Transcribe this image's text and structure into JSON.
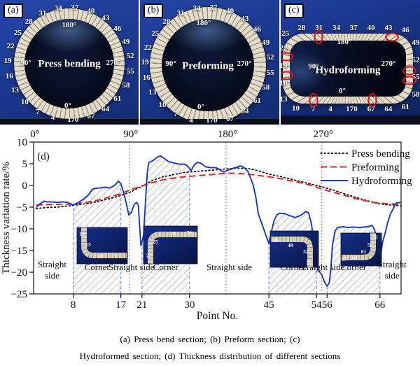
{
  "figure": {
    "panels": [
      {
        "tag": "(a)",
        "name": "Press bending",
        "shape": "circle",
        "numbers": [
          1,
          4,
          7,
          10,
          13,
          16,
          19,
          22,
          25,
          28,
          31,
          34,
          37,
          40,
          43,
          46,
          49,
          52,
          55,
          58,
          61,
          64,
          67,
          70
        ],
        "angle_labels": [
          {
            "text": "180°",
            "pos": "top"
          },
          {
            "text": "90°",
            "pos": "left"
          },
          {
            "text": "270°",
            "pos": "right"
          },
          {
            "text": "0°",
            "pos": "bottom"
          }
        ]
      },
      {
        "tag": "(b)",
        "name": "Preforming",
        "shape": "circle",
        "numbers": [
          1,
          4,
          7,
          10,
          13,
          16,
          19,
          22,
          25,
          28,
          31,
          34,
          37,
          40,
          43,
          46,
          49,
          52,
          55,
          58,
          61,
          64,
          67,
          70
        ],
        "angle_labels": [
          {
            "text": "180°",
            "pos": "top"
          },
          {
            "text": "90°",
            "pos": "left"
          },
          {
            "text": "270°",
            "pos": "right"
          },
          {
            "text": "0°",
            "pos": "bottom"
          }
        ]
      },
      {
        "tag": "(c)",
        "name": "Hydroforming",
        "shape": "rounded-rect",
        "numbers": [
          1,
          4,
          7,
          10,
          13,
          16,
          19,
          22,
          25,
          28,
          31,
          34,
          37,
          40,
          43,
          46,
          49,
          52,
          55,
          58,
          61,
          64,
          67,
          70
        ],
        "angle_labels": [
          {
            "text": "180°",
            "pos": "top"
          },
          {
            "text": "90°",
            "pos": "left"
          },
          {
            "text": "270°",
            "pos": "right"
          },
          {
            "text": "0°",
            "pos": "bottom"
          }
        ],
        "marked_points": [
          8,
          17,
          21,
          30,
          45,
          54,
          56,
          66
        ],
        "mark_color": "#e01212"
      }
    ],
    "captions": [
      "(a) Press bend section; (b) Preform section; (c)",
      "Hydroformed section; (d) Thickness distribution of different sections"
    ]
  },
  "chart_data": {
    "type": "line",
    "panel_tag": "(d)",
    "xlabel": "Point No.",
    "ylabel": "Thickness variation rate/%",
    "ylim": [
      -25,
      10
    ],
    "yticks": [
      10,
      5,
      0,
      -5,
      -10,
      -15,
      -20,
      -25
    ],
    "xlim": [
      0.5,
      70
    ],
    "xticks": [
      8,
      17,
      21,
      30,
      45,
      54,
      56,
      66
    ],
    "top_axis_labels": [
      {
        "label": "0°",
        "point": 0.5,
        "gridline": false
      },
      {
        "label": "90°",
        "point": 18.6,
        "gridline": true
      },
      {
        "label": "180°",
        "point": 36.9,
        "gridline": true
      },
      {
        "label": "270°",
        "point": 55,
        "gridline": true
      }
    ],
    "corner_regions": [
      [
        8,
        17
      ],
      [
        21,
        30
      ],
      [
        45,
        54
      ],
      [
        56,
        66
      ]
    ],
    "region_labels": [
      {
        "text": "Straight side",
        "point": 4,
        "two_line": true
      },
      {
        "text": "Corner",
        "point": 12.5,
        "two_line": false
      },
      {
        "text": "Straight side",
        "point": 19,
        "two_line": false
      },
      {
        "text": "Corner",
        "point": 25.5,
        "two_line": false
      },
      {
        "text": "Straight side",
        "point": 37.5,
        "two_line": false
      },
      {
        "text": "Corner",
        "point": 49.5,
        "two_line": false
      },
      {
        "text": "Straight side",
        "point": 55,
        "two_line": false
      },
      {
        "text": "Corner",
        "point": 61,
        "two_line": false
      },
      {
        "text": "Straight side",
        "point": 68.3,
        "two_line": true
      }
    ],
    "legend": {
      "position": "top-right",
      "entries": [
        "Press bending",
        "Preforming",
        "Hydroforming"
      ]
    },
    "colors": {
      "press_bending": "#000000",
      "preforming": "#e8231f",
      "hydroforming": "#1535d6",
      "hatch": "#999999",
      "boundary_dash": "#8a9af0",
      "gridline": "#888888"
    },
    "series": [
      {
        "name": "Press bending",
        "style": "dotted",
        "color": "#000000",
        "points": [
          [
            1,
            -5.3
          ],
          [
            3,
            -5.1
          ],
          [
            5,
            -5.0
          ],
          [
            8,
            -4.6
          ],
          [
            11,
            -4.1
          ],
          [
            13,
            -3.6
          ],
          [
            15,
            -3.0
          ],
          [
            17,
            -2.3
          ],
          [
            19,
            -1.4
          ],
          [
            21,
            -0.2
          ],
          [
            23,
            1.2
          ],
          [
            25,
            2.0
          ],
          [
            27,
            2.5
          ],
          [
            29,
            3.0
          ],
          [
            31,
            3.2
          ],
          [
            33,
            3.4
          ],
          [
            35,
            3.6
          ],
          [
            37,
            3.8
          ],
          [
            39,
            4.0
          ],
          [
            41,
            3.9
          ],
          [
            43,
            3.4
          ],
          [
            45,
            2.6
          ],
          [
            47,
            2.1
          ],
          [
            49,
            1.5
          ],
          [
            51,
            0.9
          ],
          [
            53,
            0.3
          ],
          [
            55,
            -0.3
          ],
          [
            57,
            -1.0
          ],
          [
            59,
            -1.8
          ],
          [
            61,
            -2.6
          ],
          [
            63,
            -3.3
          ],
          [
            65,
            -4.0
          ],
          [
            67,
            -4.4
          ],
          [
            69,
            -4.6
          ],
          [
            70,
            -4.7
          ]
        ]
      },
      {
        "name": "Preforming",
        "style": "dashed",
        "color": "#e8231f",
        "points": [
          [
            1,
            -4.5
          ],
          [
            4,
            -4.4
          ],
          [
            7,
            -4.3
          ],
          [
            10,
            -4.0
          ],
          [
            13,
            -3.3
          ],
          [
            15,
            -2.6
          ],
          [
            17,
            -1.9
          ],
          [
            19,
            -0.9
          ],
          [
            21,
            -0.1
          ],
          [
            23,
            0.7
          ],
          [
            25,
            1.3
          ],
          [
            27,
            1.7
          ],
          [
            29,
            2.0
          ],
          [
            31,
            2.2
          ],
          [
            33,
            2.4
          ],
          [
            35,
            2.6
          ],
          [
            37,
            2.8
          ],
          [
            39,
            2.8
          ],
          [
            41,
            2.6
          ],
          [
            43,
            2.3
          ],
          [
            45,
            2.0
          ],
          [
            47,
            1.6
          ],
          [
            49,
            1.1
          ],
          [
            51,
            0.6
          ],
          [
            53,
            0.0
          ],
          [
            55,
            -0.8
          ],
          [
            57,
            -1.5
          ],
          [
            59,
            -2.2
          ],
          [
            61,
            -2.9
          ],
          [
            63,
            -3.5
          ],
          [
            65,
            -3.9
          ],
          [
            67,
            -4.2
          ],
          [
            69,
            -4.3
          ],
          [
            70,
            -4.3
          ]
        ]
      },
      {
        "name": "Hydroforming",
        "style": "solid",
        "color": "#1535d6",
        "points": [
          [
            1,
            -5.1
          ],
          [
            1.5,
            -4.4
          ],
          [
            2,
            -4.0
          ],
          [
            2.5,
            -3.6
          ],
          [
            3,
            -3.8
          ],
          [
            4,
            -3.8
          ],
          [
            5,
            -3.9
          ],
          [
            6,
            -3.8
          ],
          [
            7,
            -3.9
          ],
          [
            7.5,
            -4.3
          ],
          [
            8,
            -4.5
          ],
          [
            9,
            -3.9
          ],
          [
            10,
            -3.1
          ],
          [
            11,
            -2.0
          ],
          [
            11.5,
            -1.0
          ],
          [
            12,
            -0.7
          ],
          [
            13,
            -0.6
          ],
          [
            14,
            -0.4
          ],
          [
            15,
            -0.6
          ],
          [
            16,
            0.2
          ],
          [
            16.5,
            1.0
          ],
          [
            17,
            0.4
          ],
          [
            17.5,
            -1.5
          ],
          [
            18,
            -4.0
          ],
          [
            18.5,
            -6.8
          ],
          [
            19,
            -6.2
          ],
          [
            19.5,
            -4.4
          ],
          [
            20,
            -3.9
          ],
          [
            20.3,
            -4.6
          ],
          [
            20.8,
            -13.9
          ],
          [
            21.3,
            -11.5
          ],
          [
            21.7,
            -3.0
          ],
          [
            22,
            3.0
          ],
          [
            22.3,
            5.3
          ],
          [
            23,
            5.7
          ],
          [
            24,
            6.6
          ],
          [
            24.5,
            6.8
          ],
          [
            25,
            6.4
          ],
          [
            26,
            5.5
          ],
          [
            27,
            5.2
          ],
          [
            28,
            4.9
          ],
          [
            29,
            4.9
          ],
          [
            29.5,
            4.6
          ],
          [
            30,
            3.9
          ],
          [
            30.3,
            3.5
          ],
          [
            31,
            4.9
          ],
          [
            31.5,
            5.3
          ],
          [
            32,
            5.2
          ],
          [
            32.5,
            4.8
          ],
          [
            33,
            4.3
          ],
          [
            34,
            4.1
          ],
          [
            35,
            4.1
          ],
          [
            35.5,
            3.8
          ],
          [
            36,
            3.4
          ],
          [
            36.5,
            3.1
          ],
          [
            37,
            3.4
          ],
          [
            38,
            3.8
          ],
          [
            38.5,
            4.1
          ],
          [
            39,
            4.2
          ],
          [
            39.5,
            4.5
          ],
          [
            40,
            4.4
          ],
          [
            40.5,
            3.9
          ],
          [
            41,
            3.3
          ],
          [
            41.5,
            1.8
          ],
          [
            42,
            0.2
          ],
          [
            42.5,
            -2.5
          ],
          [
            43,
            -6.5
          ],
          [
            44,
            -10.0
          ],
          [
            45,
            -13.4
          ],
          [
            45.5,
            -10.5
          ],
          [
            46,
            -8.0
          ],
          [
            46.5,
            -6.8
          ],
          [
            47,
            -6.4
          ],
          [
            48,
            -6.5
          ],
          [
            49,
            -7.0
          ],
          [
            50,
            -7.4
          ],
          [
            51,
            -6.9
          ],
          [
            52,
            -6.0
          ],
          [
            52.5,
            -6.3
          ],
          [
            53,
            -8.6
          ],
          [
            53.5,
            -12.5
          ],
          [
            54,
            -16.5
          ],
          [
            54.3,
            -19.5
          ],
          [
            55,
            -20.6
          ],
          [
            55.5,
            -22.2
          ],
          [
            56,
            -23.2
          ],
          [
            56.4,
            -22.5
          ],
          [
            56.7,
            -19.5
          ],
          [
            57,
            -14.0
          ],
          [
            57.5,
            -10.5
          ],
          [
            58,
            -9.7
          ],
          [
            59,
            -9.5
          ],
          [
            60,
            -9.7
          ],
          [
            61,
            -9.6
          ],
          [
            62,
            -9.7
          ],
          [
            63,
            -9.6
          ],
          [
            64,
            -9.4
          ],
          [
            64.5,
            -9.2
          ],
          [
            65,
            -10.2
          ],
          [
            65.5,
            -13.0
          ],
          [
            66,
            -17.2
          ],
          [
            66.5,
            -13.0
          ],
          [
            67,
            -10.9
          ],
          [
            67.5,
            -8.4
          ],
          [
            68,
            -6.5
          ],
          [
            68.5,
            -5.4
          ],
          [
            69,
            -4.1
          ],
          [
            70,
            -3.9
          ]
        ]
      }
    ],
    "insets": [
      {
        "corner": "bottom-left",
        "numbers": [
          "16",
          "13",
          "10",
          "7"
        ]
      },
      {
        "corner": "top-left",
        "numbers": [
          "22",
          "25",
          "28",
          "31"
        ]
      },
      {
        "corner": "top-right",
        "numbers": [
          "46",
          "49",
          "52",
          "55"
        ]
      },
      {
        "corner": "bottom-right",
        "numbers": [
          "55",
          "58",
          "61",
          "64",
          "67"
        ]
      }
    ]
  }
}
